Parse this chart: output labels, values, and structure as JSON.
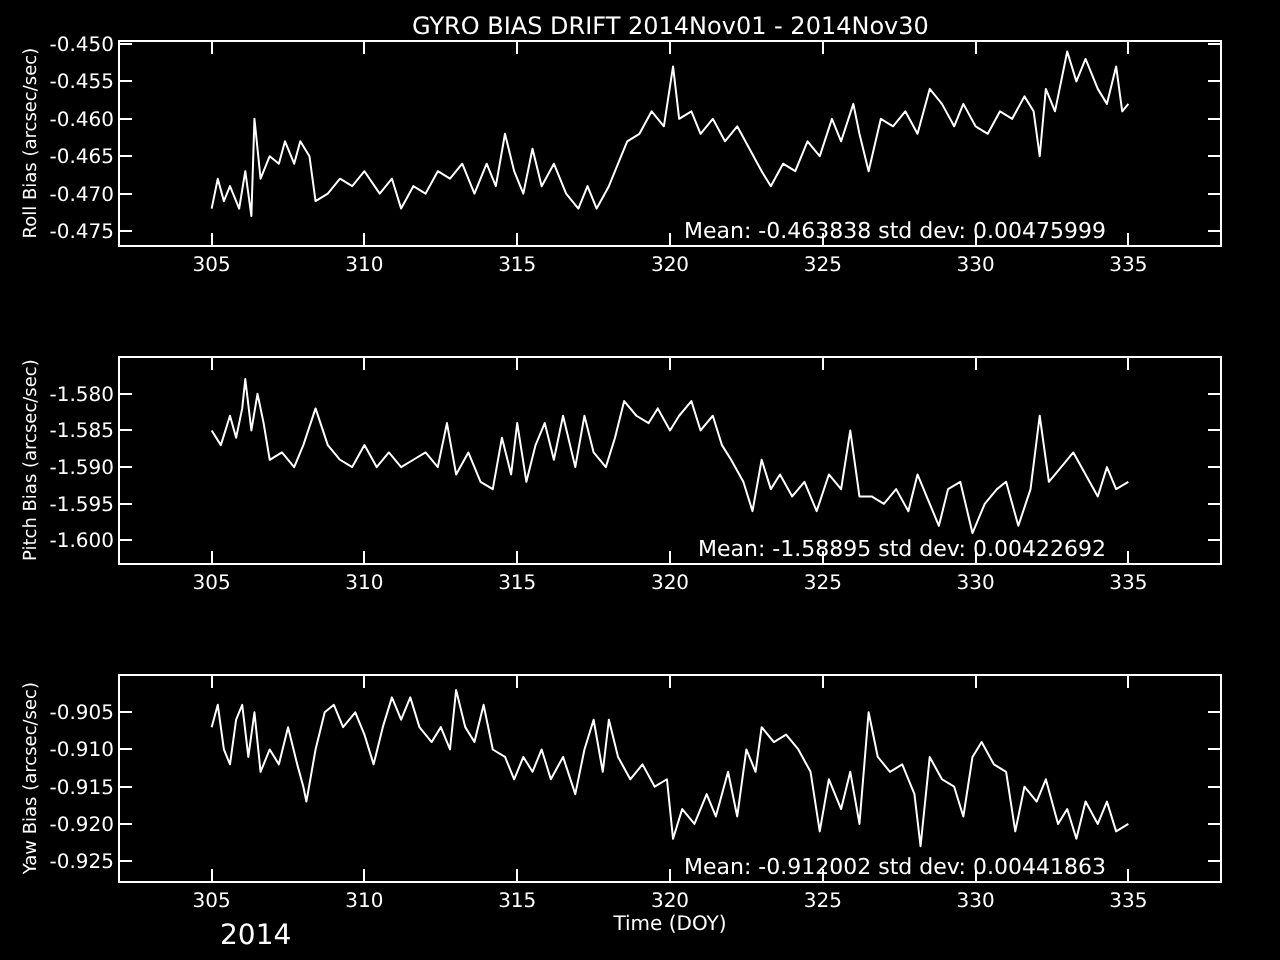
{
  "chart_data": [
    {
      "type": "line",
      "title": "GYRO BIAS DRIFT 2014Nov01 - 2014Nov30",
      "ylabel": "Roll Bias (arcsec/sec)",
      "color": "#ffffff",
      "grid": false,
      "xlim": [
        302,
        338
      ],
      "xticks": [
        305,
        310,
        315,
        320,
        325,
        330,
        335
      ],
      "ylim": [
        -0.4768,
        -0.4497
      ],
      "yticks": [
        {
          "value": -0.475,
          "label": "-0.475"
        },
        {
          "value": -0.47,
          "label": "-0.470"
        },
        {
          "value": -0.465,
          "label": "-0.465"
        },
        {
          "value": -0.46,
          "label": "-0.460"
        },
        {
          "value": -0.455,
          "label": "-0.455"
        },
        {
          "value": -0.45,
          "label": "-0.450"
        }
      ],
      "annotations": [
        "Mean: -0.463838 std dev: 0.00475999"
      ],
      "x": [
        305.0,
        305.2,
        305.4,
        305.6,
        305.9,
        306.1,
        306.3,
        306.4,
        306.6,
        306.9,
        307.2,
        307.4,
        307.7,
        307.9,
        308.2,
        308.4,
        308.8,
        309.2,
        309.6,
        310.0,
        310.5,
        310.9,
        311.2,
        311.6,
        312.0,
        312.4,
        312.8,
        313.2,
        313.6,
        314.0,
        314.3,
        314.6,
        314.9,
        315.2,
        315.5,
        315.8,
        316.2,
        316.6,
        317.0,
        317.3,
        317.6,
        318.0,
        318.3,
        318.6,
        319.0,
        319.4,
        319.8,
        320.1,
        320.3,
        320.7,
        321.0,
        321.4,
        321.8,
        322.2,
        322.6,
        323.0,
        323.3,
        323.7,
        324.1,
        324.5,
        324.9,
        325.3,
        325.6,
        326.0,
        326.2,
        326.5,
        326.9,
        327.3,
        327.7,
        328.1,
        328.5,
        328.9,
        329.3,
        329.6,
        330.0,
        330.4,
        330.8,
        331.2,
        331.6,
        331.9,
        332.1,
        332.3,
        332.6,
        333.0,
        333.3,
        333.6,
        334.0,
        334.3,
        334.6,
        334.8,
        335.0
      ],
      "values": [
        -0.472,
        -0.468,
        -0.471,
        -0.469,
        -0.472,
        -0.467,
        -0.473,
        -0.46,
        -0.468,
        -0.465,
        -0.466,
        -0.463,
        -0.466,
        -0.463,
        -0.465,
        -0.471,
        -0.47,
        -0.468,
        -0.469,
        -0.467,
        -0.47,
        -0.468,
        -0.472,
        -0.469,
        -0.47,
        -0.467,
        -0.468,
        -0.466,
        -0.47,
        -0.466,
        -0.469,
        -0.462,
        -0.467,
        -0.47,
        -0.464,
        -0.469,
        -0.466,
        -0.47,
        -0.472,
        -0.469,
        -0.472,
        -0.469,
        -0.466,
        -0.463,
        -0.462,
        -0.459,
        -0.461,
        -0.453,
        -0.46,
        -0.459,
        -0.462,
        -0.46,
        -0.463,
        -0.461,
        -0.464,
        -0.467,
        -0.469,
        -0.466,
        -0.467,
        -0.463,
        -0.465,
        -0.46,
        -0.463,
        -0.458,
        -0.462,
        -0.467,
        -0.46,
        -0.461,
        -0.459,
        -0.462,
        -0.456,
        -0.458,
        -0.461,
        -0.458,
        -0.461,
        -0.462,
        -0.459,
        -0.46,
        -0.457,
        -0.459,
        -0.465,
        -0.456,
        -0.459,
        -0.451,
        -0.455,
        -0.452,
        -0.456,
        -0.458,
        -0.453,
        -0.459,
        -0.458
      ]
    },
    {
      "type": "line",
      "ylabel": "Pitch Bias (arcsec/sec)",
      "color": "#ffffff",
      "grid": false,
      "xlim": [
        302,
        338
      ],
      "xticks": [
        305,
        310,
        315,
        320,
        325,
        330,
        335
      ],
      "ylim": [
        -1.603,
        -1.5751
      ],
      "yticks": [
        {
          "value": -1.6,
          "label": "-1.600"
        },
        {
          "value": -1.595,
          "label": "-1.595"
        },
        {
          "value": -1.59,
          "label": "-1.590"
        },
        {
          "value": -1.585,
          "label": "-1.585"
        },
        {
          "value": -1.58,
          "label": "-1.580"
        }
      ],
      "annotations": [
        "Mean: -1.58895 std dev: 0.00422692"
      ],
      "x": [
        305.0,
        305.3,
        305.6,
        305.8,
        306.0,
        306.1,
        306.3,
        306.5,
        306.7,
        306.9,
        307.3,
        307.7,
        308.0,
        308.4,
        308.8,
        309.2,
        309.6,
        310.0,
        310.4,
        310.8,
        311.2,
        311.6,
        312.0,
        312.4,
        312.7,
        313.0,
        313.4,
        313.8,
        314.2,
        314.5,
        314.8,
        315.0,
        315.3,
        315.6,
        315.9,
        316.2,
        316.5,
        316.9,
        317.2,
        317.5,
        317.9,
        318.2,
        318.5,
        318.9,
        319.3,
        319.6,
        320.0,
        320.3,
        320.7,
        321.0,
        321.4,
        321.7,
        322.0,
        322.4,
        322.7,
        323.0,
        323.3,
        323.6,
        324.0,
        324.4,
        324.8,
        325.2,
        325.6,
        325.9,
        326.2,
        326.6,
        327.0,
        327.4,
        327.8,
        328.1,
        328.5,
        328.8,
        329.1,
        329.5,
        329.9,
        330.3,
        330.7,
        331.0,
        331.4,
        331.8,
        332.1,
        332.4,
        332.8,
        333.2,
        333.6,
        334.0,
        334.3,
        334.6,
        335.0
      ],
      "values": [
        -1.585,
        -1.587,
        -1.583,
        -1.586,
        -1.582,
        -1.578,
        -1.585,
        -1.58,
        -1.584,
        -1.589,
        -1.588,
        -1.59,
        -1.587,
        -1.582,
        -1.587,
        -1.589,
        -1.59,
        -1.587,
        -1.59,
        -1.588,
        -1.59,
        -1.589,
        -1.588,
        -1.59,
        -1.584,
        -1.591,
        -1.588,
        -1.592,
        -1.593,
        -1.586,
        -1.591,
        -1.584,
        -1.592,
        -1.587,
        -1.584,
        -1.589,
        -1.583,
        -1.59,
        -1.583,
        -1.588,
        -1.59,
        -1.586,
        -1.581,
        -1.583,
        -1.584,
        -1.582,
        -1.585,
        -1.583,
        -1.581,
        -1.585,
        -1.583,
        -1.587,
        -1.589,
        -1.592,
        -1.596,
        -1.589,
        -1.593,
        -1.591,
        -1.594,
        -1.592,
        -1.596,
        -1.591,
        -1.593,
        -1.585,
        -1.594,
        -1.594,
        -1.595,
        -1.593,
        -1.596,
        -1.591,
        -1.595,
        -1.598,
        -1.593,
        -1.592,
        -1.599,
        -1.595,
        -1.593,
        -1.592,
        -1.598,
        -1.593,
        -1.583,
        -1.592,
        -1.59,
        -1.588,
        -1.591,
        -1.594,
        -1.59,
        -1.593,
        -1.592
      ]
    },
    {
      "type": "line",
      "xlabel": "Time (DOY)",
      "ylabel": "Yaw Bias (arcsec/sec)",
      "color": "#ffffff",
      "grid": false,
      "xlim": [
        302,
        338
      ],
      "xticks": [
        305,
        310,
        315,
        320,
        325,
        330,
        335
      ],
      "ylim": [
        -0.9276,
        -0.9001
      ],
      "yticks": [
        {
          "value": -0.925,
          "label": "-0.925"
        },
        {
          "value": -0.92,
          "label": "-0.920"
        },
        {
          "value": -0.915,
          "label": "-0.915"
        },
        {
          "value": -0.91,
          "label": "-0.910"
        },
        {
          "value": -0.905,
          "label": "-0.905"
        }
      ],
      "annotations": [
        "Mean: -0.912002 std dev: 0.00441863",
        "2014"
      ],
      "x": [
        305.0,
        305.2,
        305.4,
        305.6,
        305.8,
        306.0,
        306.2,
        306.4,
        306.6,
        306.9,
        307.2,
        307.5,
        307.8,
        308.0,
        308.1,
        308.4,
        308.7,
        309.0,
        309.3,
        309.7,
        310.0,
        310.3,
        310.6,
        310.9,
        311.2,
        311.5,
        311.8,
        312.2,
        312.5,
        312.8,
        313.0,
        313.3,
        313.6,
        313.9,
        314.2,
        314.6,
        314.9,
        315.2,
        315.5,
        315.8,
        316.1,
        316.5,
        316.9,
        317.2,
        317.5,
        317.8,
        318.0,
        318.3,
        318.7,
        319.1,
        319.5,
        319.9,
        320.1,
        320.4,
        320.8,
        321.2,
        321.5,
        321.9,
        322.2,
        322.5,
        322.8,
        323.0,
        323.4,
        323.8,
        324.2,
        324.6,
        324.9,
        325.2,
        325.6,
        325.9,
        326.2,
        326.5,
        326.8,
        327.2,
        327.6,
        328.0,
        328.2,
        328.5,
        328.9,
        329.3,
        329.6,
        329.9,
        330.2,
        330.6,
        331.0,
        331.3,
        331.6,
        332.0,
        332.3,
        332.7,
        333.0,
        333.3,
        333.6,
        334.0,
        334.3,
        334.6,
        335.0
      ],
      "values": [
        -0.907,
        -0.904,
        -0.91,
        -0.912,
        -0.906,
        -0.904,
        -0.911,
        -0.905,
        -0.913,
        -0.91,
        -0.912,
        -0.907,
        -0.912,
        -0.915,
        -0.917,
        -0.91,
        -0.905,
        -0.904,
        -0.907,
        -0.905,
        -0.908,
        -0.912,
        -0.907,
        -0.903,
        -0.906,
        -0.903,
        -0.907,
        -0.909,
        -0.907,
        -0.91,
        -0.902,
        -0.907,
        -0.909,
        -0.904,
        -0.91,
        -0.911,
        -0.914,
        -0.911,
        -0.913,
        -0.91,
        -0.914,
        -0.911,
        -0.916,
        -0.91,
        -0.906,
        -0.913,
        -0.906,
        -0.911,
        -0.914,
        -0.912,
        -0.915,
        -0.914,
        -0.922,
        -0.918,
        -0.92,
        -0.916,
        -0.919,
        -0.913,
        -0.919,
        -0.91,
        -0.913,
        -0.907,
        -0.909,
        -0.908,
        -0.91,
        -0.913,
        -0.921,
        -0.914,
        -0.918,
        -0.913,
        -0.92,
        -0.905,
        -0.911,
        -0.913,
        -0.912,
        -0.916,
        -0.923,
        -0.911,
        -0.914,
        -0.915,
        -0.919,
        -0.911,
        -0.909,
        -0.912,
        -0.913,
        -0.921,
        -0.915,
        -0.917,
        -0.914,
        -0.92,
        -0.918,
        -0.922,
        -0.917,
        -0.92,
        -0.917,
        -0.921,
        -0.92
      ]
    }
  ]
}
